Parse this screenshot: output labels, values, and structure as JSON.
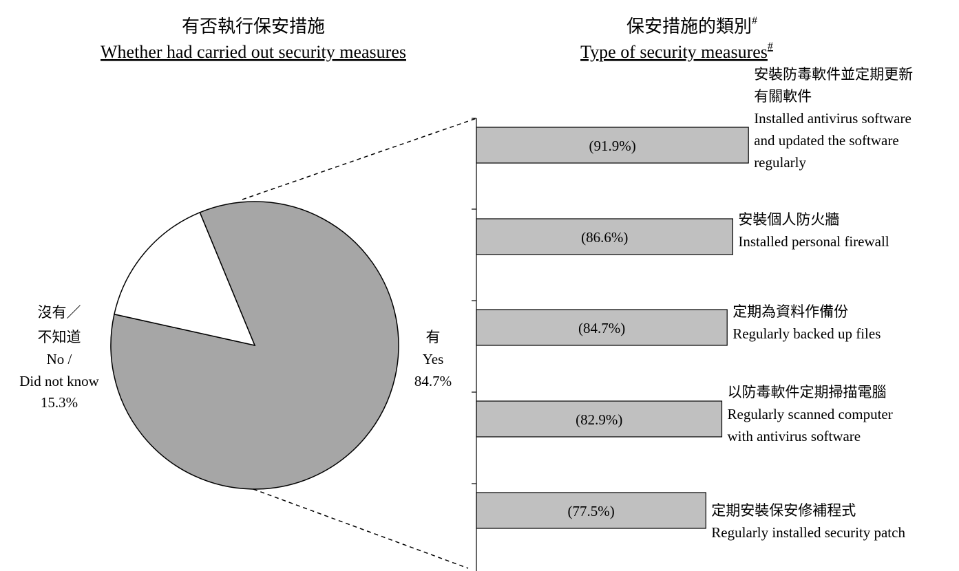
{
  "chart_data": [
    {
      "type": "pie",
      "title": "有否執行保安措施",
      "subtitle": "Whether had carried out security measures",
      "slices": [
        {
          "label_zh": "有",
          "label_en": "Yes",
          "value_label": "84.7%",
          "value": 84.7,
          "color": "#a6a6a6"
        },
        {
          "label_zh_1": "沒有／",
          "label_zh_2": "不知道",
          "label_en_1": "No /",
          "label_en_2": "Did not know",
          "value_label": "15.3%",
          "value": 15.3,
          "color": "#ffffff"
        }
      ]
    },
    {
      "type": "bar",
      "orientation": "horizontal",
      "title": "保安措施的類別",
      "subtitle": "Type of security measures",
      "title_mark": "#",
      "bar_color": "#c0c0c0",
      "xlim": [
        0,
        100
      ],
      "bars": [
        {
          "value": 91.9,
          "value_label": "(91.9%)",
          "lines": [
            "安裝防毒軟件並定期更新",
            "有關軟件",
            "Installed antivirus software",
            "and updated the software",
            "regularly"
          ]
        },
        {
          "value": 86.6,
          "value_label": "(86.6%)",
          "lines": [
            "安裝個人防火牆",
            "Installed personal firewall"
          ]
        },
        {
          "value": 84.7,
          "value_label": "(84.7%)",
          "lines": [
            "定期為資料作備份",
            "Regularly backed up files"
          ]
        },
        {
          "value": 82.9,
          "value_label": "(82.9%)",
          "lines": [
            "以防毒軟件定期掃描電腦",
            "Regularly scanned computer",
            "with antivirus software"
          ]
        },
        {
          "value": 77.5,
          "value_label": "(77.5%)",
          "lines": [
            "定期安裝保安修補程式",
            "Regularly installed security patch"
          ]
        }
      ]
    }
  ]
}
